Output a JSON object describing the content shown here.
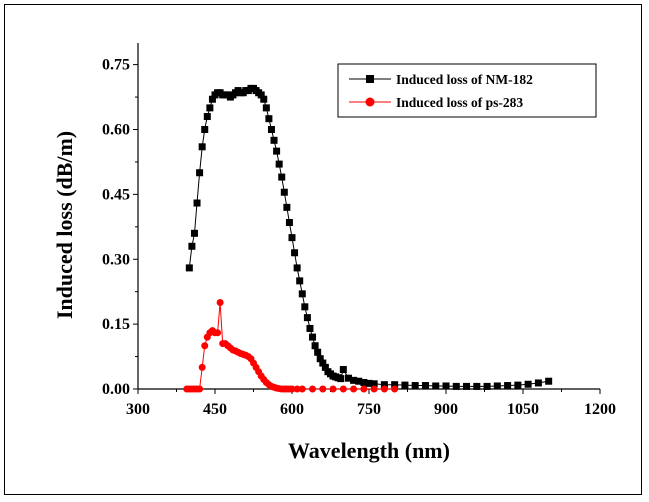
{
  "chart_data": {
    "type": "line",
    "title": "",
    "xlabel": "Wavelength (nm)",
    "ylabel": "Induced loss (dB/m)",
    "xlim": [
      300,
      1200
    ],
    "ylim": [
      0,
      0.8
    ],
    "x_ticks": [
      300,
      450,
      600,
      750,
      900,
      1050,
      1200
    ],
    "x_tick_labels": [
      "300",
      "450",
      "600",
      "750",
      "900",
      "1050",
      "1200"
    ],
    "y_ticks": [
      0,
      0.15,
      0.3,
      0.45,
      0.6,
      0.75
    ],
    "y_tick_labels": [
      "0.00",
      "0.15",
      "0.30",
      "0.45",
      "0.60",
      "0.75"
    ],
    "grid": false,
    "legend_position": "top-right",
    "series": [
      {
        "name": "Induced loss of NM-182",
        "color": "#000000",
        "marker": "square",
        "x": [
          400,
          405,
          410,
          415,
          420,
          425,
          430,
          435,
          440,
          445,
          450,
          455,
          460,
          465,
          470,
          475,
          480,
          485,
          490,
          495,
          500,
          505,
          510,
          515,
          520,
          525,
          530,
          535,
          540,
          545,
          550,
          555,
          560,
          565,
          570,
          575,
          580,
          585,
          590,
          595,
          600,
          605,
          610,
          615,
          620,
          625,
          630,
          635,
          640,
          645,
          650,
          655,
          660,
          665,
          670,
          675,
          680,
          685,
          690,
          695,
          700,
          710,
          720,
          730,
          740,
          750,
          760,
          780,
          800,
          820,
          840,
          860,
          880,
          900,
          920,
          940,
          960,
          980,
          1000,
          1020,
          1040,
          1060,
          1080,
          1100
        ],
        "y": [
          0.28,
          0.33,
          0.36,
          0.43,
          0.5,
          0.56,
          0.6,
          0.63,
          0.65,
          0.67,
          0.68,
          0.685,
          0.685,
          0.68,
          0.68,
          0.68,
          0.675,
          0.68,
          0.685,
          0.69,
          0.685,
          0.685,
          0.69,
          0.69,
          0.695,
          0.695,
          0.69,
          0.685,
          0.68,
          0.67,
          0.65,
          0.625,
          0.6,
          0.575,
          0.55,
          0.52,
          0.49,
          0.455,
          0.42,
          0.385,
          0.35,
          0.315,
          0.28,
          0.25,
          0.22,
          0.19,
          0.165,
          0.14,
          0.12,
          0.1,
          0.085,
          0.07,
          0.06,
          0.05,
          0.04,
          0.035,
          0.03,
          0.028,
          0.026,
          0.024,
          0.045,
          0.025,
          0.02,
          0.018,
          0.015,
          0.013,
          0.012,
          0.01,
          0.01,
          0.009,
          0.008,
          0.008,
          0.007,
          0.007,
          0.006,
          0.006,
          0.006,
          0.006,
          0.007,
          0.008,
          0.009,
          0.011,
          0.014,
          0.018
        ]
      },
      {
        "name": "Induced loss of ps-283",
        "color": "#ff0000",
        "marker": "circle",
        "x": [
          395,
          400,
          405,
          410,
          415,
          420,
          425,
          430,
          435,
          440,
          445,
          450,
          455,
          460,
          465,
          470,
          475,
          480,
          485,
          490,
          495,
          500,
          505,
          510,
          515,
          520,
          525,
          530,
          535,
          540,
          545,
          550,
          555,
          560,
          565,
          570,
          575,
          580,
          585,
          590,
          595,
          600,
          610,
          620,
          640,
          660,
          680,
          700,
          720,
          740,
          760,
          780,
          800
        ],
        "y": [
          0,
          0,
          0,
          0,
          0,
          0,
          0.05,
          0.1,
          0.12,
          0.13,
          0.135,
          0.13,
          0.13,
          0.2,
          0.105,
          0.105,
          0.1,
          0.095,
          0.09,
          0.088,
          0.085,
          0.082,
          0.08,
          0.078,
          0.075,
          0.07,
          0.06,
          0.05,
          0.04,
          0.03,
          0.022,
          0.015,
          0.01,
          0.006,
          0.004,
          0.002,
          0.001,
          0,
          0,
          0,
          0,
          0,
          0,
          0,
          0,
          0,
          0,
          0,
          0,
          0,
          0,
          0,
          0
        ]
      }
    ]
  }
}
